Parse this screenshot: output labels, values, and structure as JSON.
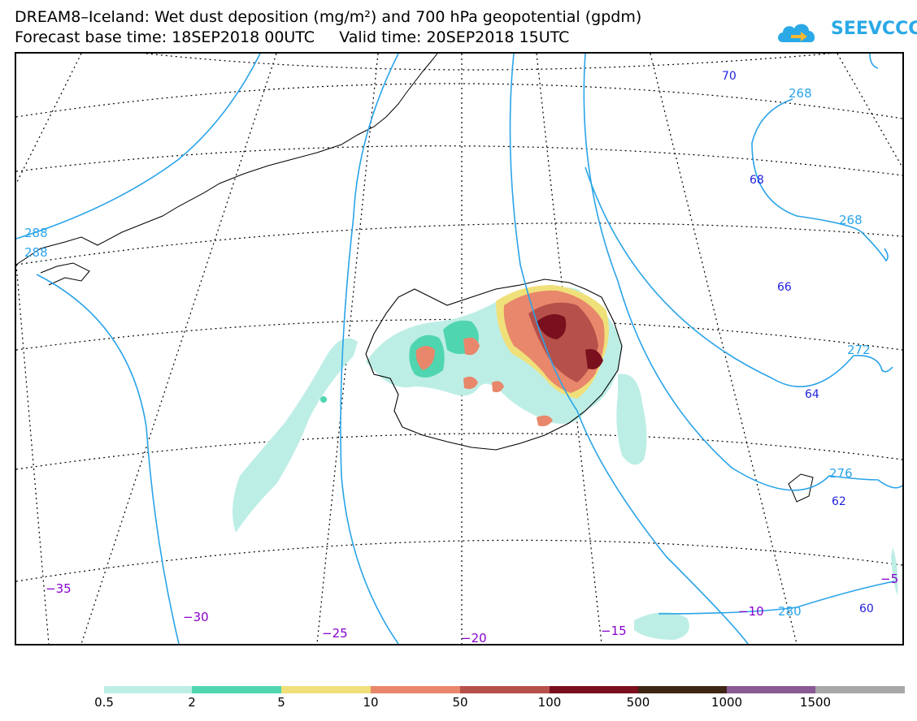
{
  "header": {
    "title_line1": "DREAM8–Iceland: Wet dust deposition (mg/m²) and 700 hPa geopotential (gpdm)",
    "title_line2": "Forecast base time: 18SEP2018 00UTC     Valid time: 20SEP2018 15UTC"
  },
  "logo": {
    "text": "SEEVCCC",
    "icon": "cloud-arrow-icon",
    "color": "#2aa9e6"
  },
  "map": {
    "contour_color": "#2aa4e8",
    "contour_labels": [
      "288",
      "288",
      "268",
      "268",
      "272",
      "276",
      "280"
    ],
    "lat_labels": [
      "70",
      "68",
      "66",
      "64",
      "62",
      "60"
    ],
    "lon_labels": [
      "−35",
      "−30",
      "−25",
      "−20",
      "−15",
      "−10",
      "−5"
    ],
    "lat_label_color": "#2222dd",
    "lon_label_color": "#8800cc"
  },
  "legend": {
    "labels": [
      "0.5",
      "2",
      "5",
      "10",
      "50",
      "100",
      "500",
      "1000",
      "1500"
    ],
    "colors": [
      "#bdeee6",
      "#4fd6b0",
      "#f0e07a",
      "#e8876b",
      "#b5504a",
      "#7a0f1e",
      "#3e2614",
      "#8a5a94",
      "#a8a8a8"
    ]
  }
}
